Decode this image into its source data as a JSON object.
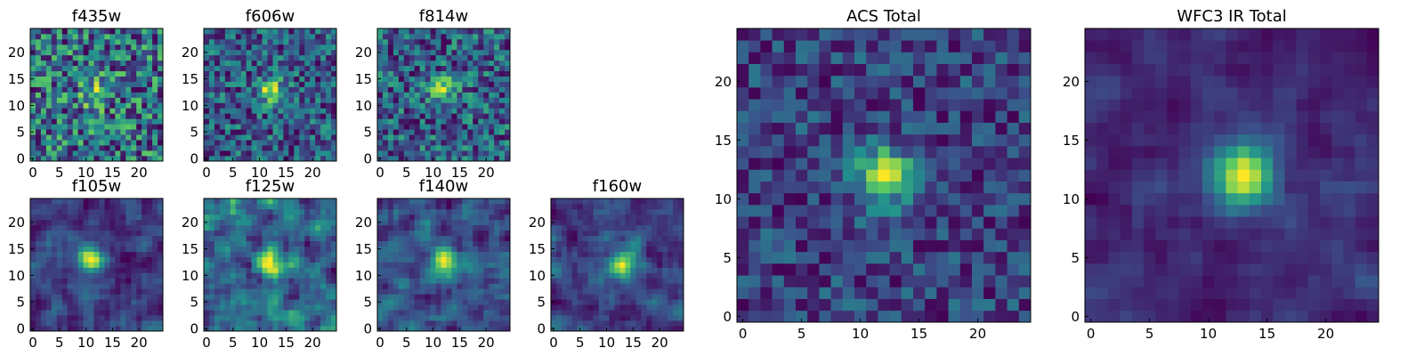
{
  "colors": {
    "colormap": [
      "#440154",
      "#3b528b",
      "#21908d",
      "#5dc963",
      "#fde725"
    ],
    "background": "#ffffff",
    "frame": "#000000"
  },
  "chart_data": [
    {
      "type": "heatmap",
      "title": "f435w",
      "shape": [
        25,
        25
      ],
      "xticks": [
        0,
        5,
        10,
        15,
        20
      ],
      "yticks": [
        0,
        5,
        10,
        15,
        20
      ],
      "source_center": [
        12,
        12
      ],
      "smoothness": 0,
      "peak": 0.55,
      "noise": 0.9
    },
    {
      "type": "heatmap",
      "title": "f606w",
      "shape": [
        25,
        25
      ],
      "xticks": [
        0,
        5,
        10,
        15,
        20
      ],
      "yticks": [
        0,
        5,
        10,
        15,
        20
      ],
      "source_center": [
        12,
        13
      ],
      "smoothness": 0,
      "peak": 0.7,
      "noise": 0.85
    },
    {
      "type": "heatmap",
      "title": "f814w",
      "shape": [
        25,
        25
      ],
      "xticks": [
        0,
        5,
        10,
        15,
        20
      ],
      "yticks": [
        0,
        5,
        10,
        15,
        20
      ],
      "source_center": [
        12,
        13
      ],
      "smoothness": 0,
      "peak": 0.6,
      "noise": 0.9
    },
    {
      "type": "heatmap",
      "title": "f105w",
      "shape": [
        25,
        25
      ],
      "xticks": [
        0,
        5,
        10,
        15,
        20
      ],
      "yticks": [
        0,
        5,
        10,
        15,
        20
      ],
      "source_center": [
        11,
        13
      ],
      "smoothness": 1,
      "peak": 0.7,
      "noise": 0.8
    },
    {
      "type": "heatmap",
      "title": "f125w",
      "shape": [
        25,
        25
      ],
      "xticks": [
        0,
        5,
        10,
        15,
        20
      ],
      "yticks": [
        0,
        5,
        10,
        15,
        20
      ],
      "source_center": [
        12,
        12
      ],
      "smoothness": 1,
      "peak": 0.5,
      "noise": 0.85
    },
    {
      "type": "heatmap",
      "title": "f140w",
      "shape": [
        25,
        25
      ],
      "xticks": [
        0,
        5,
        10,
        15,
        20
      ],
      "yticks": [
        0,
        5,
        10,
        15,
        20
      ],
      "source_center": [
        12,
        13
      ],
      "smoothness": 1,
      "peak": 0.6,
      "noise": 0.85
    },
    {
      "type": "heatmap",
      "title": "f160w",
      "shape": [
        25,
        25
      ],
      "xticks": [
        0,
        5,
        10,
        15,
        20
      ],
      "yticks": [
        0,
        5,
        10,
        15,
        20
      ],
      "source_center": [
        13,
        12
      ],
      "smoothness": 1,
      "peak": 0.7,
      "noise": 0.8
    },
    {
      "type": "heatmap",
      "title": "ACS Total",
      "shape": [
        25,
        25
      ],
      "xticks": [
        0,
        5,
        10,
        15,
        20
      ],
      "yticks": [
        0,
        5,
        10,
        15,
        20
      ],
      "source_center": [
        12,
        12
      ],
      "smoothness": 0,
      "peak": 0.9,
      "noise": 0.6
    },
    {
      "type": "heatmap",
      "title": "WFC3 IR Total",
      "shape": [
        25,
        25
      ],
      "xticks": [
        0,
        5,
        10,
        15,
        20
      ],
      "yticks": [
        0,
        5,
        10,
        15,
        20
      ],
      "source_center": [
        13,
        12
      ],
      "smoothness": 1,
      "peak": 1.0,
      "noise": 0.55
    }
  ]
}
